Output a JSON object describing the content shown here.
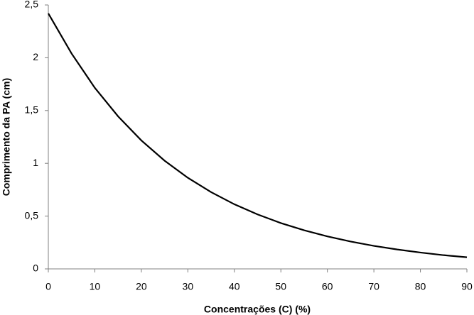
{
  "chart_data": {
    "type": "line",
    "x_label": "Concentrações (C) (%)",
    "y_label": "Comprimento da PA (cm)",
    "x": [
      0,
      5,
      10,
      15,
      20,
      25,
      30,
      35,
      40,
      45,
      50,
      55,
      60,
      65,
      70,
      75,
      80,
      85,
      90
    ],
    "values": [
      2.42,
      2.04,
      1.715,
      1.445,
      1.217,
      1.025,
      0.863,
      0.727,
      0.612,
      0.516,
      0.434,
      0.366,
      0.308,
      0.259,
      0.218,
      0.184,
      0.155,
      0.13,
      0.11
    ],
    "color": "#000000",
    "xlim": [
      0,
      90
    ],
    "xticks": [
      0,
      10,
      20,
      30,
      40,
      50,
      60,
      70,
      80,
      90
    ],
    "ylim": [
      0,
      2.5
    ],
    "yticks": [
      0,
      {
        "value": 0.5,
        "label": "0,5"
      },
      1,
      {
        "value": 1.5,
        "label": "1,5"
      },
      2,
      {
        "value": 2.5,
        "label": "2,5"
      }
    ],
    "grid": false
  }
}
